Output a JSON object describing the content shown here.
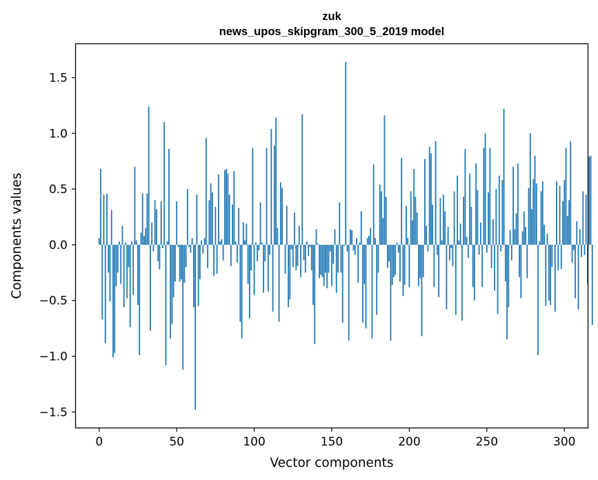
{
  "chart_data": {
    "type": "bar",
    "title": "zuk",
    "subtitle": "news_upos_skipgram_300_5_2019 model",
    "xlabel": "Vector components",
    "ylabel": "Components values",
    "xlim": [
      -15,
      315
    ],
    "ylim": [
      -1.64,
      1.8
    ],
    "xticks": [
      0,
      50,
      100,
      150,
      200,
      250,
      300
    ],
    "xtick_labels": [
      "0",
      "50",
      "100",
      "150",
      "200",
      "250",
      "300"
    ],
    "yticks": [
      -1.5,
      -1.0,
      -0.5,
      0.0,
      0.5,
      1.0,
      1.5
    ],
    "ytick_labels": [
      "−1.5",
      "−1.0",
      "−0.5",
      "0.0",
      "0.5",
      "1.0",
      "1.5"
    ],
    "bar_color": "#1f77b4",
    "series": [
      {
        "name": "components",
        "values": [
          0.06,
          0.68,
          -0.67,
          0.45,
          -0.88,
          0.46,
          -0.25,
          -0.51,
          0.31,
          -1.01,
          -0.97,
          -0.37,
          -0.25,
          0.03,
          -0.35,
          0.17,
          -0.56,
          0.02,
          -0.48,
          -0.2,
          -0.74,
          0.03,
          -0.45,
          0.7,
          0.04,
          -0.54,
          -0.99,
          0.11,
          0.46,
          0.08,
          0.15,
          0.46,
          1.24,
          -0.77,
          0.2,
          -0.06,
          0.4,
          0.32,
          -0.15,
          -0.22,
          0.39,
          -0.03,
          1.1,
          -1.08,
          0.03,
          0.86,
          -0.84,
          -0.71,
          -0.47,
          -0.33,
          0.39,
          -0.02,
          -0.33,
          -0.31,
          -1.12,
          -0.34,
          -0.2,
          0.5,
          -0.02,
          -0.07,
          0.06,
          -0.56,
          -1.48,
          0.45,
          -0.55,
          -0.31,
          0.04,
          -0.08,
          0.06,
          0.96,
          -0.21,
          0.4,
          0.55,
          0.47,
          -0.28,
          0.34,
          -0.26,
          0.63,
          0.03,
          0.05,
          -0.14,
          0.67,
          0.68,
          0.64,
          0.45,
          -0.19,
          0.36,
          0.66,
          0.03,
          -0.16,
          0.33,
          -0.69,
          -0.84,
          0.2,
          0.04,
          0.19,
          -0.35,
          -0.66,
          -0.23,
          0.87,
          -0.45,
          0.02,
          -0.15,
          -0.05,
          0.38,
          0.02,
          -0.43,
          -0.15,
          0.87,
          -0.42,
          -0.09,
          1.04,
          -0.6,
          0.89,
          1.14,
          0.15,
          -0.69,
          0.56,
          0.51,
          0.0,
          -0.26,
          0.35,
          -0.56,
          -0.49,
          -0.04,
          -0.2,
          0.29,
          -0.23,
          -0.19,
          0.17,
          -0.29,
          1.17,
          -0.14,
          -0.25,
          0.03,
          -0.1,
          -0.02,
          -0.23,
          -0.54,
          -0.89,
          0.14,
          0.01,
          -0.3,
          -0.27,
          -0.29,
          -0.37,
          -0.25,
          -0.39,
          -0.25,
          -0.06,
          -0.37,
          -0.17,
          0.14,
          -0.43,
          -0.25,
          0.38,
          -0.25,
          -0.7,
          -0.01,
          1.64,
          -0.06,
          -0.86,
          0.14,
          0.13,
          -0.05,
          -0.09,
          0.06,
          -0.34,
          0.02,
          0.3,
          -0.7,
          -0.35,
          -0.75,
          0.06,
          0.08,
          0.15,
          -0.84,
          0.72,
          0.06,
          -0.63,
          -0.25,
          0.54,
          0.48,
          0.24,
          1.16,
          0.43,
          -0.21,
          -0.15,
          -0.86,
          -0.36,
          -0.29,
          -0.27,
          0.02,
          -0.07,
          -0.33,
          0.78,
          -0.46,
          -0.36,
          0.35,
          0.06,
          -0.38,
          0.48,
          0.22,
          0.68,
          0.43,
          0.29,
          -0.37,
          -0.3,
          -0.82,
          -0.29,
          0.77,
          0.17,
          -0.06,
          0.88,
          0.82,
          0.36,
          -0.38,
          0.93,
          -0.09,
          -0.47,
          0.42,
          0.04,
          0.45,
          0.3,
          -0.58,
          0.16,
          -0.14,
          -0.03,
          -0.19,
          0.48,
          -0.63,
          0.62,
          0.04,
          0.19,
          -0.68,
          0.43,
          0.86,
          0.07,
          -0.12,
          0.64,
          0.34,
          -0.38,
          -0.5,
          0.73,
          0.49,
          -0.09,
          0.2,
          -0.38,
          0.87,
          1.0,
          -0.07,
          0.47,
          0.87,
          -0.21,
          0.23,
          -0.41,
          0.5,
          -0.62,
          0.62,
          -0.06,
          0.58,
          1.22,
          -0.33,
          -0.85,
          -0.56,
          0.13,
          -0.14,
          0.7,
          0.14,
          0.28,
          0.73,
          -0.29,
          -0.48,
          0.12,
          0.3,
          0.16,
          -0.3,
          0.51,
          1.0,
          0.32,
          0.59,
          0.8,
          0.55,
          -0.99,
          0.03,
          0.48,
          0.57,
          0.18,
          -0.55,
          0.1,
          -0.5,
          -0.54,
          -0.2,
          0.0,
          -0.6,
          0.57,
          -0.23,
          0.53,
          -0.22,
          0.39,
          0.58,
          0.87,
          0.26,
          0.4,
          0.93,
          -0.16,
          -0.05,
          -0.48,
          0.21,
          -0.58,
          0.14,
          -0.11,
          0.48,
          -0.09,
          0.45,
          -0.35,
          0.79,
          0.8,
          -0.72
        ]
      }
    ]
  }
}
